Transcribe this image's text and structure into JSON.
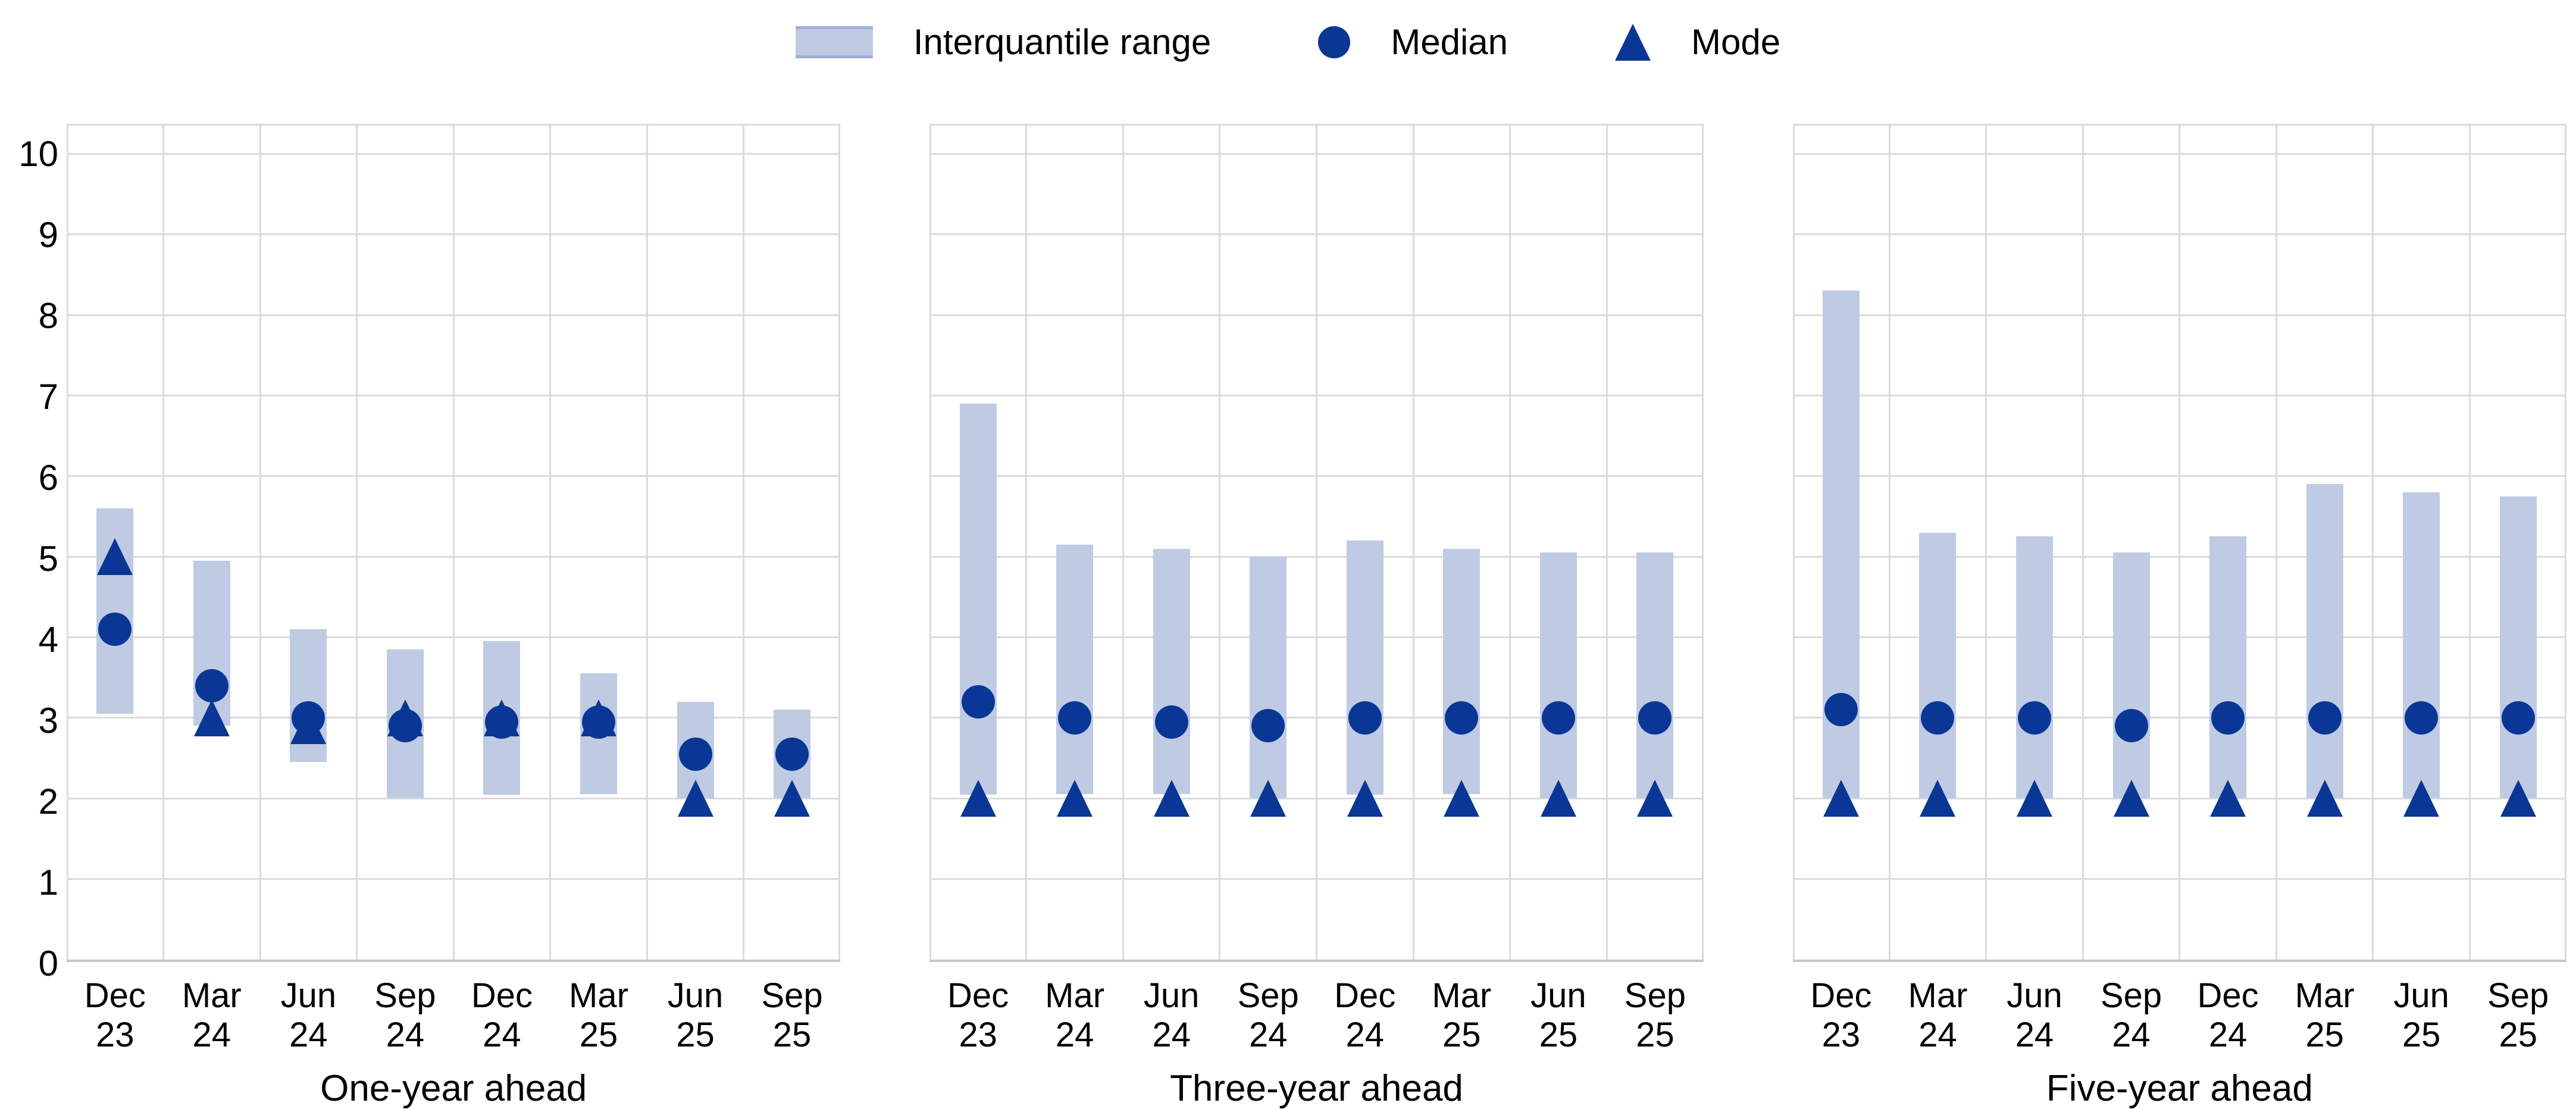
{
  "colors": {
    "bar": "#BFCAE3",
    "bar_edge": "#9FAFD6",
    "marker": "#0A3795",
    "gridline": "#DBDBDB",
    "axis_line": "#C6C6C6",
    "text": "#000000",
    "background": "#FFFFFF"
  },
  "legend": {
    "items": [
      {
        "marker": "bar-swatch",
        "label": "Interquantile range"
      },
      {
        "marker": "circle",
        "label": "Median"
      },
      {
        "marker": "triangle",
        "label": "Mode"
      }
    ]
  },
  "chart_data": {
    "type": "bar",
    "title": "",
    "subtitle": "",
    "grid": true,
    "legend_position": "top-center",
    "legend": [
      "Interquantile range",
      "Median",
      "Mode"
    ],
    "ylim": [
      0,
      10
    ],
    "yticks": [
      0,
      1,
      2,
      3,
      4,
      5,
      6,
      7,
      8,
      9,
      10
    ],
    "categories": [
      "Dec 23",
      "Mar 24",
      "Jun 24",
      "Sep 24",
      "Dec 24",
      "Mar 25",
      "Jun 25",
      "Sep 25"
    ],
    "panels": [
      {
        "title": "One-year ahead",
        "interquantile_range": [
          [
            3.05,
            5.6
          ],
          [
            2.9,
            4.95
          ],
          [
            2.45,
            4.1
          ],
          [
            2.0,
            3.85
          ],
          [
            2.05,
            3.95
          ],
          [
            2.05,
            3.55
          ],
          [
            2.0,
            3.2
          ],
          [
            2.0,
            3.1
          ]
        ],
        "median": [
          4.1,
          3.4,
          3.0,
          2.9,
          2.95,
          2.95,
          2.55,
          2.55
        ],
        "mode": [
          5.0,
          3.0,
          2.9,
          3.0,
          3.0,
          3.0,
          2.0,
          2.0
        ]
      },
      {
        "title": "Three-year ahead",
        "interquantile_range": [
          [
            2.05,
            6.9
          ],
          [
            2.05,
            5.15
          ],
          [
            2.05,
            5.1
          ],
          [
            2.0,
            5.0
          ],
          [
            2.05,
            5.2
          ],
          [
            2.05,
            5.1
          ],
          [
            2.0,
            5.05
          ],
          [
            2.0,
            5.05
          ]
        ],
        "median": [
          3.2,
          3.0,
          2.95,
          2.9,
          3.0,
          3.0,
          3.0,
          3.0
        ],
        "mode": [
          2.0,
          2.0,
          2.0,
          2.0,
          2.0,
          2.0,
          2.0,
          2.0
        ]
      },
      {
        "title": "Five-year ahead",
        "interquantile_range": [
          [
            2.0,
            8.3
          ],
          [
            2.0,
            5.3
          ],
          [
            2.0,
            5.25
          ],
          [
            2.0,
            5.05
          ],
          [
            2.0,
            5.25
          ],
          [
            2.0,
            5.9
          ],
          [
            2.0,
            5.8
          ],
          [
            2.0,
            5.75
          ]
        ],
        "median": [
          3.1,
          3.0,
          3.0,
          2.9,
          3.0,
          3.0,
          3.0,
          3.0
        ],
        "mode": [
          2.0,
          2.0,
          2.0,
          2.0,
          2.0,
          2.0,
          2.0,
          2.0
        ]
      }
    ]
  }
}
